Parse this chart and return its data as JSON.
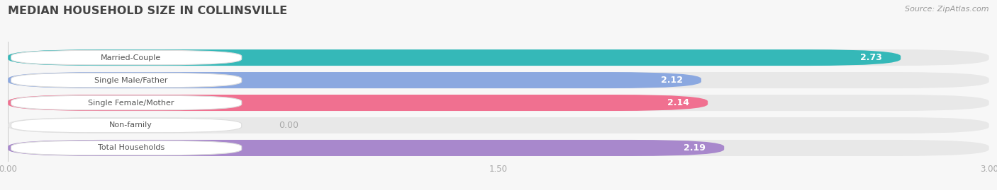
{
  "title": "MEDIAN HOUSEHOLD SIZE IN COLLINSVILLE",
  "source": "Source: ZipAtlas.com",
  "categories": [
    "Married-Couple",
    "Single Male/Father",
    "Single Female/Mother",
    "Non-family",
    "Total Households"
  ],
  "values": [
    2.73,
    2.12,
    2.14,
    0.0,
    2.19
  ],
  "bar_colors": [
    "#35b8b8",
    "#8ba8e0",
    "#f07090",
    "#f0c090",
    "#a888cc"
  ],
  "xlim_data": 3.0,
  "xticks": [
    0.0,
    1.5,
    3.0
  ],
  "title_color": "#444444",
  "source_color": "#999999",
  "tick_label_color": "#aaaaaa",
  "background_color": "#f7f7f7",
  "bar_bg_color": "#e8e8e8",
  "label_box_color": "#ffffff",
  "value_text_color": "#ffffff",
  "nonfamily_value_color": "#aaaaaa"
}
